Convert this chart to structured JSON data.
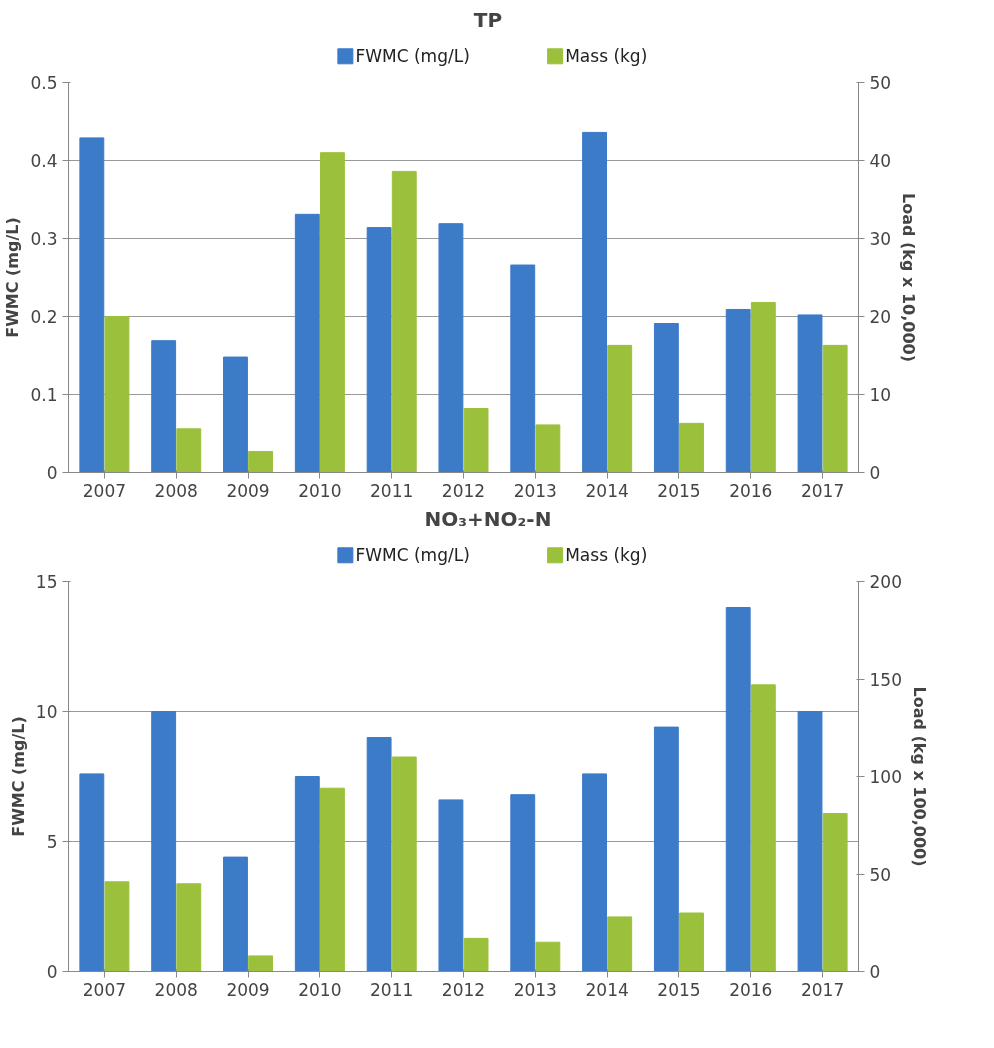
{
  "chart_data": [
    {
      "type": "bar",
      "title": "TP",
      "ylabel": "FWMC (mg/L)",
      "y2label": "Load (kg x 10,000)",
      "categories": [
        "2007",
        "2008",
        "2009",
        "2010",
        "2011",
        "2012",
        "2013",
        "2014",
        "2015",
        "2016",
        "2017"
      ],
      "series": [
        {
          "name": "FWMC (mg/L)",
          "color": "#3c7bc7",
          "values": [
            0.429,
            0.169,
            0.148,
            0.331,
            0.314,
            0.319,
            0.266,
            0.436,
            0.191,
            0.209,
            0.202
          ]
        },
        {
          "name": "Mass (kg)",
          "color": "#9bc13c",
          "axis": "y2",
          "values": [
            20.0,
            5.6,
            2.7,
            41.0,
            38.6,
            8.2,
            6.1,
            16.3,
            6.3,
            21.8,
            16.3
          ]
        }
      ],
      "ylim": [
        0,
        0.5
      ],
      "yticks": [
        0,
        0.1,
        0.2,
        0.3,
        0.4,
        0.5
      ],
      "y2lim": [
        0,
        50
      ],
      "y2ticks": [
        0,
        10,
        20,
        30,
        40,
        50
      ],
      "grid": "y",
      "legend": "top"
    },
    {
      "type": "bar",
      "title": "NO₃+NO₂-N",
      "ylabel": "FWMC (mg/L)",
      "y2label": "Load (kg x 100,000)",
      "categories": [
        "2007",
        "2008",
        "2009",
        "2010",
        "2011",
        "2012",
        "2013",
        "2014",
        "2015",
        "2016",
        "2017"
      ],
      "series": [
        {
          "name": "FWMC (mg/L)",
          "color": "#3c7bc7",
          "values": [
            7.6,
            10.0,
            4.4,
            7.5,
            9.0,
            6.6,
            6.8,
            7.6,
            9.4,
            14.0,
            10.0
          ]
        },
        {
          "name": "Mass (kg)",
          "color": "#9bc13c",
          "axis": "y2",
          "values": [
            46,
            45,
            8,
            94,
            110,
            17,
            15,
            28,
            30,
            147,
            81
          ]
        }
      ],
      "ylim": [
        0,
        15
      ],
      "yticks": [
        0,
        5,
        10,
        15
      ],
      "y2lim": [
        0,
        200
      ],
      "y2ticks": [
        0,
        50,
        100,
        150,
        200
      ],
      "grid": "y",
      "legend": "top"
    }
  ]
}
